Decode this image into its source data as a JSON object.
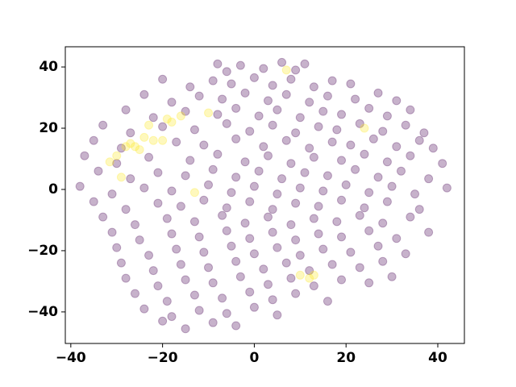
{
  "chart_data": {
    "type": "scatter",
    "xlim": [
      -41.2,
      45.8
    ],
    "ylim": [
      -50.3,
      46.6
    ],
    "xticks": [
      {
        "value": -40,
        "label": "−40"
      },
      {
        "value": -20,
        "label": "−20"
      },
      0,
      20,
      40
    ],
    "yticks": [
      {
        "value": -40,
        "label": "−40"
      },
      {
        "value": -20,
        "label": "−20"
      },
      0,
      20,
      40
    ],
    "opacity": 0.3,
    "series": [
      {
        "color": "#440154",
        "x": [
          -8,
          -6,
          -3,
          2,
          6,
          9,
          11,
          -20,
          -14,
          -9,
          -5,
          0,
          4,
          8,
          13,
          17,
          21,
          -24,
          -18,
          -12,
          -7,
          -2,
          3,
          7,
          12,
          16,
          22,
          27,
          31,
          -28,
          -22,
          -15,
          -8,
          -4,
          1,
          5,
          10,
          15,
          19,
          25,
          29,
          34,
          -33,
          -27,
          -20,
          -13,
          -6,
          -1,
          4,
          9,
          14,
          18,
          23,
          28,
          33,
          37,
          -35,
          -29,
          -17,
          -11,
          -4,
          2,
          7,
          12,
          17,
          21,
          26,
          31,
          36,
          39,
          -37,
          -30,
          -23,
          -14,
          -8,
          -2,
          3,
          8,
          13,
          19,
          24,
          29,
          34,
          41,
          -34,
          -27,
          -21,
          -15,
          -9,
          -4,
          1,
          6,
          11,
          16,
          22,
          27,
          32,
          38,
          -38,
          -31,
          -24,
          -18,
          -10,
          -5,
          0,
          5,
          10,
          15,
          20,
          25,
          30,
          35,
          42,
          -35,
          -28,
          -21,
          -16,
          -11,
          -6,
          -1,
          4,
          9,
          14,
          19,
          24,
          29,
          36,
          -33,
          -26,
          -19,
          -13,
          -7,
          -2,
          3,
          8,
          13,
          18,
          23,
          28,
          34,
          -31,
          -25,
          -18,
          -12,
          -6,
          -1,
          4,
          9,
          14,
          19,
          25,
          31,
          38,
          -30,
          -23,
          -17,
          -11,
          -5,
          0,
          5,
          10,
          15,
          21,
          27,
          33,
          -29,
          -22,
          -16,
          -10,
          -4,
          2,
          7,
          12,
          17,
          23,
          28,
          -28,
          -21,
          -15,
          -9,
          -3,
          3,
          8,
          13,
          19,
          25,
          30,
          -26,
          -19,
          -13,
          -7,
          -1,
          4,
          9,
          16,
          -24,
          -18,
          -12,
          -6,
          0,
          5,
          -20,
          -15,
          -9,
          -4
        ],
        "values": [
          41,
          38.5,
          40.5,
          39.5,
          41.5,
          39,
          41,
          36,
          33.5,
          35.5,
          34.5,
          36.5,
          34,
          36,
          33.5,
          35.5,
          34.5,
          31,
          28.5,
          30.5,
          29.5,
          31.5,
          29,
          31,
          28.5,
          30.5,
          29.5,
          31.5,
          29,
          26,
          23.5,
          25.5,
          24.5,
          26.5,
          24,
          26,
          23.5,
          25.5,
          24.5,
          26.5,
          24,
          26,
          21,
          18.5,
          20.5,
          19.5,
          21.5,
          19,
          21,
          18.5,
          20.5,
          19.5,
          21.5,
          19,
          21,
          18.5,
          16,
          13.5,
          15.5,
          14.5,
          16.5,
          14,
          16,
          13.5,
          15.5,
          14.5,
          16.5,
          14,
          16,
          13.5,
          11,
          8.5,
          10.5,
          9.5,
          11.5,
          9,
          11,
          8.5,
          10.5,
          9.5,
          11.5,
          9,
          11,
          8.5,
          6,
          3.5,
          5.5,
          4.5,
          6.5,
          4,
          6,
          3.5,
          5.5,
          4.5,
          6.5,
          4,
          6,
          3.5,
          1,
          -1.5,
          0.5,
          -0.5,
          1.5,
          -1,
          1,
          -1.5,
          0.5,
          -0.5,
          1.5,
          -1,
          1,
          -1.5,
          0.5,
          -4,
          -6.5,
          -4.5,
          -5.5,
          -3.5,
          -6,
          -4,
          -6.5,
          -4.5,
          -5.5,
          -3.5,
          -6,
          -4,
          -6.5,
          -9,
          -11.5,
          -9.5,
          -10.5,
          -8.5,
          -11,
          -9,
          -11.5,
          -9.5,
          -10.5,
          -8.5,
          -11,
          -9,
          -14,
          -16.5,
          -14.5,
          -15.5,
          -13.5,
          -16,
          -14,
          -16.5,
          -14.5,
          -15.5,
          -13.5,
          -16,
          -14,
          -19,
          -21.5,
          -19.5,
          -20.5,
          -18.5,
          -21,
          -19,
          -21.5,
          -19.5,
          -20.5,
          -18.5,
          -21,
          -24,
          -26.5,
          -24.5,
          -25.5,
          -23.5,
          -26,
          -24,
          -26.5,
          -24.5,
          -25.5,
          -23.5,
          -29,
          -31.5,
          -29.5,
          -30.5,
          -28.5,
          -31,
          -29,
          -31.5,
          -29.5,
          -30.5,
          -28.5,
          -34,
          -36.5,
          -34.5,
          -35.5,
          -33.5,
          -36,
          -34,
          -36.5,
          -39,
          -41.5,
          -39.5,
          -40.5,
          -38.5,
          -41,
          -43,
          -45.5,
          -43.5,
          -44.5
        ]
      },
      {
        "color": "#fde725",
        "x": [
          -31.5,
          -30,
          -28,
          -26,
          -27,
          -25,
          -24,
          -23,
          -22,
          -20,
          -19,
          -18,
          -16,
          -10,
          -13,
          7,
          10,
          12,
          13,
          24,
          -29
        ],
        "values": [
          9,
          11,
          14,
          14,
          15,
          13,
          17,
          21,
          16,
          16,
          23,
          22,
          24,
          25,
          -1,
          39,
          -28,
          -29,
          -28,
          20,
          4
        ]
      }
    ]
  }
}
